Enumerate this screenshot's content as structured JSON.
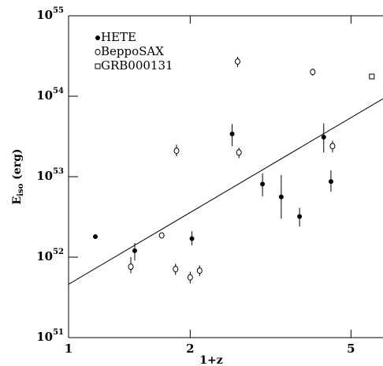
{
  "chart_data": {
    "type": "scatter",
    "xlabel": "1+z",
    "ylabel": {
      "main": "E",
      "sub": "iso",
      "rest": " (erg)"
    },
    "xlog": true,
    "ylog": true,
    "xlim": [
      1,
      6
    ],
    "ylim": [
      1e+51,
      1e+55
    ],
    "xticks": [
      1,
      2,
      5
    ],
    "yticks": [
      {
        "value": 1e+51,
        "label": "10",
        "exponent": "51"
      },
      {
        "value": 1e+52,
        "label": "10",
        "exponent": "52"
      },
      {
        "value": 1e+53,
        "label": "10",
        "exponent": "53"
      },
      {
        "value": 1e+54,
        "label": "10",
        "exponent": "54"
      },
      {
        "value": 1e+55,
        "label": "10",
        "exponent": "55"
      }
    ],
    "legend": "top-left",
    "series": [
      {
        "name": "HETE",
        "marker": "filled-circle",
        "color": "#000000",
        "x": [
          1.165,
          1.458,
          2.02,
          2.54,
          3.02,
          3.36,
          3.73,
          4.28,
          4.46
        ],
        "values": [
          1.8e+52,
          1.2e+52,
          1.7e+52,
          3.4e+53,
          8.1e+52,
          5.6e+52,
          3.2e+52,
          3.1e+53,
          8.7e+52
        ],
        "y_low": [
          null,
          9.1e+51,
          1.4e+52,
          2.4e+53,
          5.7e+52,
          3e+52,
          2.4e+52,
          2e+53,
          6.5e+52
        ],
        "y_high": [
          null,
          1.5e+52,
          2.1e+52,
          4.5e+53,
          1.1e+53,
          1.05e+53,
          4.1e+52,
          4.6e+53,
          1.2e+53
        ]
      },
      {
        "name": "BeppoSAX",
        "marker": "open-circle",
        "color": "#000000",
        "x": [
          1.426,
          1.7,
          1.85,
          1.84,
          2.0,
          2.11,
          2.62,
          2.64,
          4.02,
          4.5
        ],
        "values": [
          7.6e+51,
          1.86e+52,
          2.1e+53,
          7.1e+51,
          5.6e+51,
          6.8e+51,
          2.7e+54,
          2e+53,
          2e+54,
          2.4e+53
        ],
        "y_low": [
          6.3e+51,
          null,
          1.8e+53,
          6e+51,
          4.7e+51,
          5.8e+51,
          2.3e+54,
          1.7e+53,
          1.8e+54,
          2e+53
        ],
        "y_high": [
          1e+52,
          null,
          2.5e+53,
          8.3e+51,
          6.6e+51,
          7.9e+51,
          3.1e+54,
          2.3e+53,
          2.2e+54,
          2.8e+53
        ]
      },
      {
        "name": "GRB000131",
        "marker": "open-square",
        "color": "#000000",
        "x": [
          5.63
        ],
        "values": [
          1.76e+54
        ]
      }
    ],
    "fit": {
      "x": [
        1,
        6
      ],
      "values": [
        4.6e+51,
        9.3e+53
      ]
    }
  }
}
